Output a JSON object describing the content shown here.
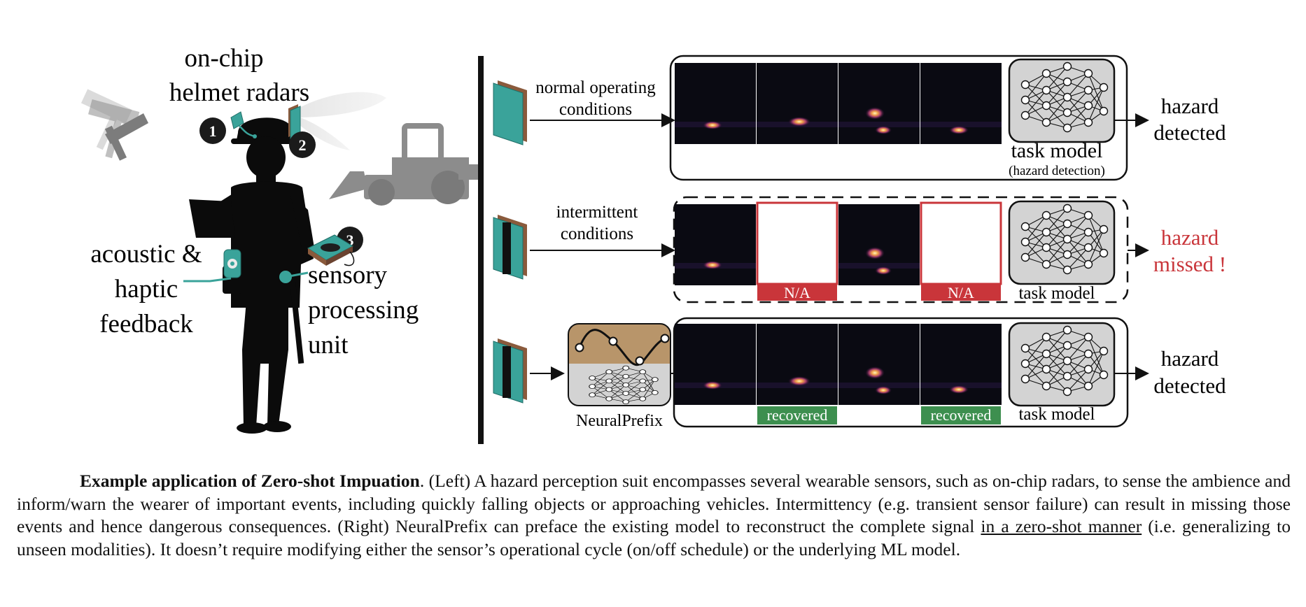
{
  "colors": {
    "teal": "#3aa39a",
    "copper": "#8a5a3c",
    "missing_red": "#c9353a",
    "recovered_green": "#3d8f4f",
    "prefix_tan": "#b8956a",
    "grey_box": "#d3d3d3",
    "machinery_grey": "#8c8c8c"
  },
  "left": {
    "title_line1": "on-chip",
    "title_line2": "helmet radars",
    "badges": [
      "1",
      "2",
      "3"
    ],
    "feedback_label": [
      "acoustic &",
      "haptic",
      "feedback"
    ],
    "processing_label": [
      "sensory",
      "processing",
      "unit"
    ],
    "icons": [
      "worker-silhouette-icon",
      "helmet-radar-icon",
      "falling-hammer-icon",
      "loader-vehicle-icon",
      "processing-unit-icon",
      "acoustic-device-icon"
    ]
  },
  "right": {
    "row1": {
      "condition_line1": "normal operating",
      "condition_line2": "conditions",
      "model_label": "task model",
      "model_sublabel": "(hazard detection)",
      "result_line1": "hazard",
      "result_line2": "detected"
    },
    "row2": {
      "condition_line1": "intermittent",
      "condition_line2": "conditions",
      "na_label": "N/A",
      "model_label": "task model",
      "result_line1": "hazard",
      "result_line2": "missed !"
    },
    "row3": {
      "prefix_label": "NeuralPrefix",
      "recovered_label": "recovered",
      "model_label": "task model",
      "result_line1": "hazard",
      "result_line2": "detected"
    }
  },
  "caption": {
    "bold": "Example application of Zero-shot Impuation",
    "text1": ". (Left) A hazard perception suit encompasses several wearable sensors, such as on-chip radars, to sense the ambience and inform/warn the wearer of important events, including quickly falling objects or approaching vehicles. Intermittency (e.g. transient sensor failure) can result in missing those events and hence dangerous consequences. (Right) NeuralPrefix can preface the existing model to reconstruct the complete signal ",
    "underlined": "in a zero-shot manner",
    "text2": " (i.e. generalizing to unseen modalities). It doesn’t require modifying either the sensor’s operational cycle (on/off schedule) or the underlying ML model."
  }
}
